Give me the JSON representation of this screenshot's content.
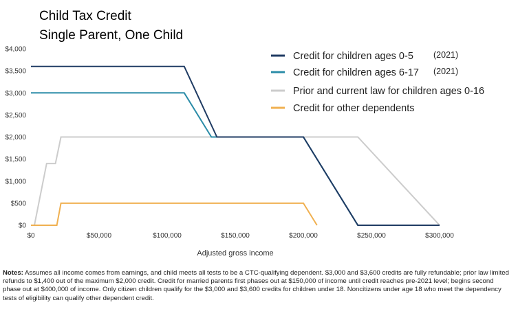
{
  "chart_data": {
    "type": "line",
    "title_lines": [
      "Child Tax Credit",
      "Single Parent, One Child"
    ],
    "xlabel": "Adjusted gross income",
    "ylabel": "",
    "xlim": [
      0,
      300000
    ],
    "ylim": [
      0,
      4000
    ],
    "x_ticks": [
      0,
      50000,
      100000,
      150000,
      200000,
      250000,
      300000
    ],
    "x_tick_labels": [
      "$0",
      "$50,000",
      "$100,000",
      "$150,000",
      "$200,000",
      "$250,000",
      "$300,000"
    ],
    "y_ticks": [
      0,
      500,
      1000,
      1500,
      2000,
      2500,
      3000,
      3500,
      4000
    ],
    "y_tick_labels": [
      "$0",
      "$500",
      "$1,000",
      "$1,500",
      "$2,000",
      "$2,500",
      "$3,000",
      "$3,500",
      "$4,000"
    ],
    "grid": false,
    "legend_position": "top-right",
    "series": [
      {
        "name": "Credit for children ages 0-5",
        "suffix": "(2021)",
        "color": "#1f3b63",
        "x": [
          0,
          112500,
          136500,
          200000,
          240000,
          300000
        ],
        "y": [
          3600,
          3600,
          2000,
          2000,
          0,
          0
        ]
      },
      {
        "name": "Credit for children ages 6-17",
        "suffix": "(2021)",
        "color": "#2b8ca8",
        "x": [
          0,
          112500,
          132500,
          200000,
          240000,
          300000
        ],
        "y": [
          3000,
          3000,
          2000,
          2000,
          0,
          0
        ]
      },
      {
        "name": "Prior and current law for children ages 0-16",
        "suffix": "",
        "color": "#cccccc",
        "x": [
          0,
          2500,
          11500,
          18000,
          22000,
          240000,
          300000
        ],
        "y": [
          0,
          0,
          1400,
          1400,
          2000,
          2000,
          0
        ]
      },
      {
        "name": "Credit for other dependents",
        "suffix": "",
        "color": "#f0b050",
        "x": [
          0,
          19000,
          22000,
          200000,
          210000
        ],
        "y": [
          0,
          0,
          500,
          500,
          0
        ]
      }
    ]
  },
  "notes": {
    "label": "Notes:",
    "text": "Assumes all income comes from earnings, and child meets all tests to be a CTC-qualifying dependent. $3,000 and $3,600 credits are fully refundable; prior law limited refunds to $1,400 out of the maximum $2,000 credit. Credit for married parents first phases out at $150,000 of income until credit reaches pre-2021 level; begins second phase out at $400,000 of income. Only citizen children qualify for the $3,000 and $3,600 credits for children under 18. Noncitizens under age 18 who meet the dependency tests of eligibility can qualify other dependent credit."
  }
}
